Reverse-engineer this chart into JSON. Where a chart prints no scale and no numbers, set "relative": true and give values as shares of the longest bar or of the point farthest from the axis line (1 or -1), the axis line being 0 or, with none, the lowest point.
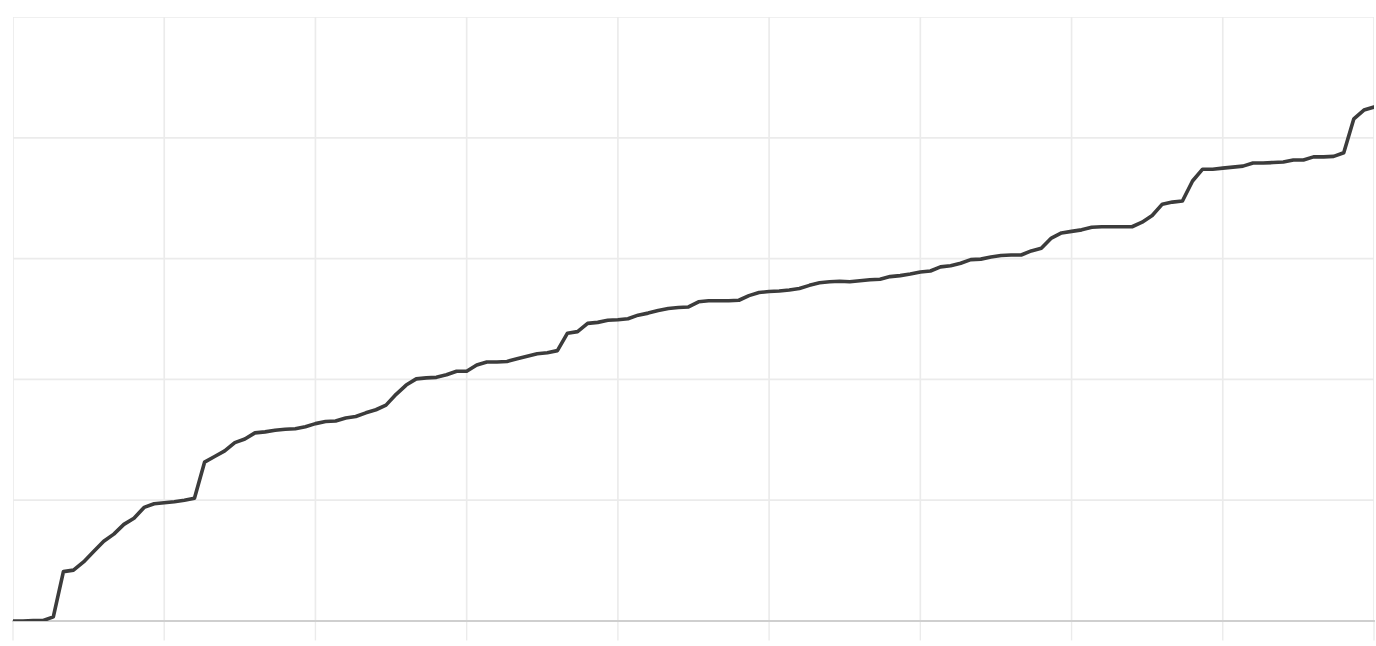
{
  "chart_data": {
    "type": "line",
    "relative": true,
    "color": "#3c3c3c",
    "line_style": "solid",
    "grid": true,
    "categories": [
      null,
      null,
      null,
      null,
      null,
      null,
      null,
      null,
      null,
      null,
      null,
      null,
      null,
      null,
      null,
      null,
      null,
      null,
      null,
      null,
      null,
      null,
      null,
      null,
      null,
      null,
      null,
      null,
      null,
      null,
      null,
      null,
      null,
      null,
      null,
      null,
      null,
      null,
      null,
      null,
      null,
      null,
      null,
      null,
      null,
      null,
      null,
      null,
      null,
      null,
      null,
      null,
      null,
      null,
      null,
      null,
      null,
      null,
      null,
      null,
      null,
      null,
      null,
      null,
      null,
      null,
      null,
      null,
      null,
      null,
      null,
      null,
      null,
      null,
      null,
      null,
      null,
      null,
      null,
      null,
      null,
      null,
      null,
      null,
      null,
      null,
      null,
      null,
      null,
      null,
      null,
      null,
      null,
      null,
      null,
      null,
      null,
      null,
      null,
      null,
      null,
      null,
      null,
      null,
      null,
      null,
      null,
      null,
      null,
      null,
      null,
      null,
      null,
      null,
      null,
      null,
      null,
      null,
      null,
      null,
      null,
      null,
      null,
      null,
      null,
      null,
      null,
      null,
      null,
      null,
      null,
      null,
      null,
      null,
      null,
      null
    ],
    "values": [
      0.0,
      0.0,
      0.001,
      0.001,
      0.008,
      0.096,
      0.099,
      0.115,
      0.135,
      0.155,
      0.169,
      0.188,
      0.2,
      0.221,
      0.228,
      0.23,
      0.232,
      0.235,
      0.239,
      0.309,
      0.32,
      0.331,
      0.347,
      0.354,
      0.366,
      0.368,
      0.371,
      0.373,
      0.374,
      0.378,
      0.384,
      0.388,
      0.389,
      0.395,
      0.398,
      0.405,
      0.411,
      0.42,
      0.441,
      0.459,
      0.471,
      0.473,
      0.474,
      0.479,
      0.486,
      0.486,
      0.498,
      0.504,
      0.504,
      0.505,
      0.51,
      0.515,
      0.52,
      0.522,
      0.526,
      0.56,
      0.563,
      0.579,
      0.581,
      0.585,
      0.586,
      0.588,
      0.595,
      0.599,
      0.604,
      0.608,
      0.61,
      0.611,
      0.621,
      0.623,
      0.623,
      0.623,
      0.624,
      0.633,
      0.639,
      0.641,
      0.642,
      0.644,
      0.647,
      0.653,
      0.658,
      0.66,
      0.661,
      0.66,
      0.662,
      0.664,
      0.665,
      0.67,
      0.672,
      0.675,
      0.679,
      0.681,
      0.689,
      0.691,
      0.696,
      0.703,
      0.704,
      0.708,
      0.711,
      0.712,
      0.712,
      0.72,
      0.725,
      0.745,
      0.755,
      0.758,
      0.761,
      0.766,
      0.767,
      0.767,
      0.767,
      0.767,
      0.776,
      0.789,
      0.811,
      0.815,
      0.817,
      0.856,
      0.879,
      0.879,
      0.881,
      0.883,
      0.885,
      0.891,
      0.891,
      0.892,
      0.893,
      0.897,
      0.897,
      0.903,
      0.903,
      0.904,
      0.911,
      0.977,
      0.994,
      1.0
    ]
  }
}
